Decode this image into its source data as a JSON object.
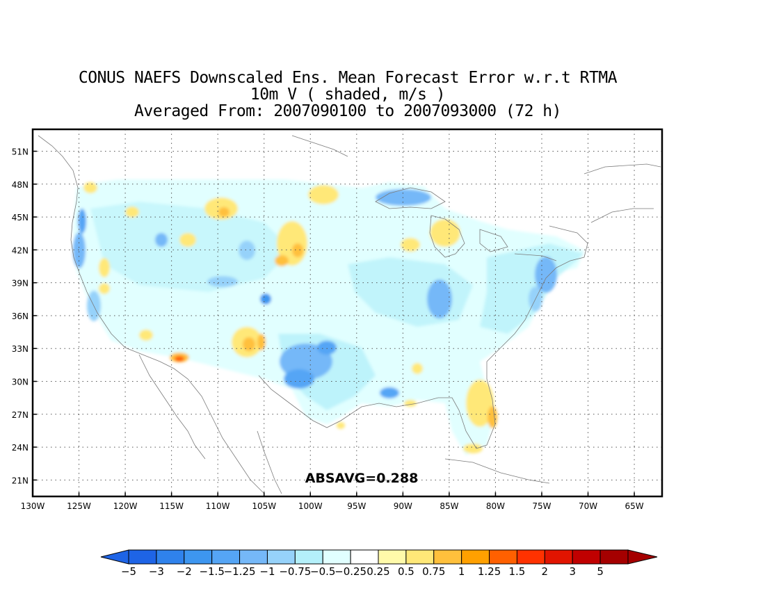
{
  "title": {
    "line1": "CONUS NAEFS Downscaled Ens. Mean Forecast Error w.r.t RTMA",
    "line2": "10m V ( shaded, m/s )",
    "line3": "Averaged From: 2007090100 to 2007093000 (72 h)"
  },
  "map": {
    "lon_range": [
      -130,
      -62
    ],
    "lat_range": [
      19.5,
      53
    ],
    "lon_ticks": [
      "130W",
      "125W",
      "120W",
      "115W",
      "110W",
      "105W",
      "100W",
      "95W",
      "90W",
      "85W",
      "80W",
      "75W",
      "70W",
      "65W"
    ],
    "lat_ticks": [
      "51N",
      "48N",
      "45N",
      "42N",
      "39N",
      "36N",
      "33N",
      "30N",
      "27N",
      "24N",
      "21N"
    ],
    "grid": true
  },
  "stat": {
    "label": "ABSAVG=0.288"
  },
  "colorbar": {
    "labels": [
      "−5",
      "−3",
      "−2",
      "−1.5",
      "−1.25",
      "−1",
      "−0.75",
      "−0.5",
      "−0.25",
      "0.25",
      "0.5",
      "0.75",
      "1",
      "1.25",
      "1.5",
      "2",
      "3",
      "5"
    ],
    "colors": [
      "#1e64e6",
      "#2f82ec",
      "#3d96f0",
      "#55a5f5",
      "#75b8f8",
      "#96d2fa",
      "#b4f0fa",
      "#e1ffff",
      "#ffffff",
      "#fffaaa",
      "#ffe878",
      "#ffc03c",
      "#ffa000",
      "#ff6000",
      "#ff3200",
      "#e11400",
      "#c00000",
      "#a50000"
    ]
  },
  "legend_icons": [
    "left-arrow-icon",
    "right-arrow-icon"
  ]
}
